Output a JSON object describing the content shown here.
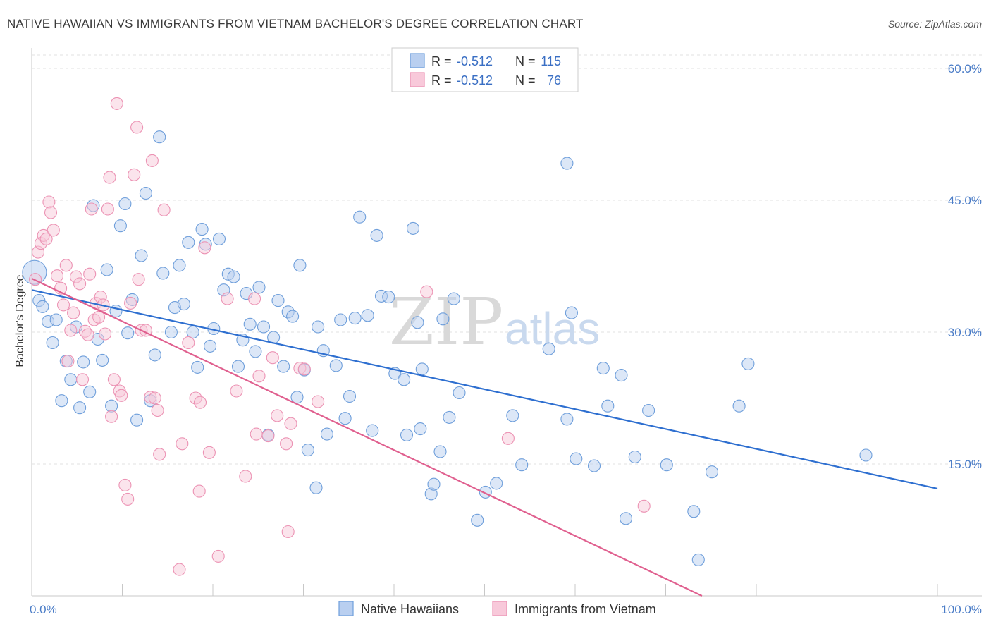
{
  "chart_data": {
    "type": "scatter",
    "title": "NATIVE HAWAIIAN VS IMMIGRANTS FROM VIETNAM BACHELOR'S DEGREE CORRELATION CHART",
    "source": "Source: ZipAtlas.com",
    "xlabel": "",
    "ylabel": "Bachelor's Degree",
    "xlim": [
      0,
      100
    ],
    "ylim": [
      0,
      60
    ],
    "x_tick_labels": [
      {
        "value": 0,
        "label": "0.0%"
      },
      {
        "value": 100,
        "label": "100.0%"
      }
    ],
    "y_tick_labels": [
      {
        "value": 15,
        "label": "15.0%"
      },
      {
        "value": 30,
        "label": "30.0%"
      },
      {
        "value": 45,
        "label": "45.0%"
      },
      {
        "value": 60,
        "label": "60.0%"
      }
    ],
    "watermark": {
      "zip": "ZIP",
      "atlas": "atlas"
    },
    "legend": {
      "r_label": "R =",
      "n_label": "N =",
      "rows": [
        {
          "r": "-0.512",
          "n": "115"
        },
        {
          "r": "-0.512",
          "n": "76"
        }
      ]
    },
    "series": [
      {
        "name": "Native Hawaiians",
        "color": "#6f9fdb",
        "fill": "#b9cff0",
        "line_color": "#2e6fd0",
        "trend": {
          "x0": 0,
          "y0": 34.8,
          "x1": 100,
          "y1": 12.2
        },
        "points": [
          [
            0.3,
            36.8
          ],
          [
            0.8,
            33.6
          ],
          [
            1.2,
            32.9
          ],
          [
            1.8,
            31.2
          ],
          [
            2.3,
            28.8
          ],
          [
            2.7,
            31.4
          ],
          [
            3.3,
            22.2
          ],
          [
            3.8,
            26.7
          ],
          [
            4.3,
            24.6
          ],
          [
            4.9,
            30.6
          ],
          [
            5.3,
            21.4
          ],
          [
            5.7,
            26.6
          ],
          [
            6.4,
            23.2
          ],
          [
            6.8,
            44.4
          ],
          [
            7.3,
            29.2
          ],
          [
            7.8,
            26.8
          ],
          [
            8.3,
            37.1
          ],
          [
            8.8,
            21.6
          ],
          [
            9.3,
            32.4
          ],
          [
            9.8,
            42.1
          ],
          [
            10.3,
            44.6
          ],
          [
            10.6,
            29.9
          ],
          [
            11.1,
            33.7
          ],
          [
            11.6,
            20.0
          ],
          [
            12.1,
            38.7
          ],
          [
            12.6,
            45.8
          ],
          [
            13.1,
            22.2
          ],
          [
            13.6,
            27.4
          ],
          [
            14.1,
            52.2
          ],
          [
            14.5,
            36.7
          ],
          [
            15.4,
            30.0
          ],
          [
            15.8,
            32.8
          ],
          [
            16.3,
            37.6
          ],
          [
            16.8,
            33.2
          ],
          [
            17.3,
            40.2
          ],
          [
            17.8,
            30.0
          ],
          [
            18.3,
            26.0
          ],
          [
            18.8,
            41.7
          ],
          [
            19.2,
            40.0
          ],
          [
            19.7,
            28.4
          ],
          [
            20.1,
            30.4
          ],
          [
            20.7,
            40.6
          ],
          [
            21.2,
            34.8
          ],
          [
            21.7,
            36.6
          ],
          [
            22.3,
            36.3
          ],
          [
            22.8,
            26.1
          ],
          [
            23.3,
            29.1
          ],
          [
            23.7,
            34.4
          ],
          [
            24.1,
            30.9
          ],
          [
            24.7,
            27.8
          ],
          [
            25.1,
            35.1
          ],
          [
            25.6,
            30.6
          ],
          [
            26.1,
            18.3
          ],
          [
            26.7,
            29.4
          ],
          [
            27.2,
            33.6
          ],
          [
            27.8,
            26.1
          ],
          [
            28.3,
            32.3
          ],
          [
            28.8,
            31.8
          ],
          [
            29.3,
            22.6
          ],
          [
            29.6,
            37.6
          ],
          [
            30.1,
            25.7
          ],
          [
            30.5,
            16.6
          ],
          [
            31.4,
            12.3
          ],
          [
            31.6,
            30.6
          ],
          [
            32.2,
            27.9
          ],
          [
            32.6,
            18.4
          ],
          [
            33.6,
            26.2
          ],
          [
            34.1,
            31.4
          ],
          [
            34.6,
            20.2
          ],
          [
            35.1,
            22.7
          ],
          [
            35.7,
            31.6
          ],
          [
            36.2,
            43.1
          ],
          [
            37.1,
            31.9
          ],
          [
            37.6,
            18.8
          ],
          [
            38.1,
            41.0
          ],
          [
            38.6,
            34.1
          ],
          [
            39.4,
            34.0
          ],
          [
            40.1,
            25.3
          ],
          [
            41.1,
            24.6
          ],
          [
            41.4,
            18.3
          ],
          [
            42.1,
            41.8
          ],
          [
            42.6,
            31.1
          ],
          [
            42.9,
            19.0
          ],
          [
            43.1,
            25.8
          ],
          [
            44.1,
            11.6
          ],
          [
            44.4,
            12.7
          ],
          [
            45.1,
            16.4
          ],
          [
            45.4,
            31.5
          ],
          [
            46.1,
            20.3
          ],
          [
            46.6,
            33.8
          ],
          [
            47.2,
            23.1
          ],
          [
            49.2,
            8.6
          ],
          [
            50.1,
            11.8
          ],
          [
            51.3,
            12.8
          ],
          [
            53.1,
            20.5
          ],
          [
            54.1,
            14.9
          ],
          [
            57.1,
            28.1
          ],
          [
            59.1,
            20.1
          ],
          [
            59.6,
            32.2
          ],
          [
            60.1,
            15.6
          ],
          [
            59.1,
            49.2
          ],
          [
            62.1,
            14.8
          ],
          [
            63.1,
            25.9
          ],
          [
            63.6,
            21.6
          ],
          [
            65.1,
            25.1
          ],
          [
            65.6,
            8.8
          ],
          [
            66.6,
            15.8
          ],
          [
            68.1,
            21.1
          ],
          [
            70.1,
            14.9
          ],
          [
            73.1,
            9.6
          ],
          [
            73.6,
            4.1
          ],
          [
            75.1,
            14.1
          ],
          [
            78.1,
            21.6
          ],
          [
            79.1,
            26.4
          ],
          [
            92.1,
            16.0
          ]
        ]
      },
      {
        "name": "Immigrants from Vietnam",
        "color": "#ec93b4",
        "fill": "#f8c9da",
        "line_color": "#e0608f",
        "trend": {
          "x0": 0,
          "y0": 36.1,
          "x1": 74,
          "y1": 0
        },
        "points": [
          [
            0.4,
            36.0
          ],
          [
            0.7,
            39.1
          ],
          [
            1.0,
            40.1
          ],
          [
            1.3,
            41.0
          ],
          [
            1.6,
            40.6
          ],
          [
            1.9,
            44.8
          ],
          [
            2.1,
            43.6
          ],
          [
            2.4,
            41.6
          ],
          [
            2.8,
            36.4
          ],
          [
            3.2,
            35.0
          ],
          [
            3.5,
            33.1
          ],
          [
            3.8,
            37.6
          ],
          [
            4.0,
            26.7
          ],
          [
            4.3,
            30.2
          ],
          [
            4.6,
            32.2
          ],
          [
            4.9,
            36.3
          ],
          [
            5.3,
            35.5
          ],
          [
            5.6,
            24.6
          ],
          [
            5.9,
            30.1
          ],
          [
            6.2,
            29.7
          ],
          [
            6.4,
            36.6
          ],
          [
            6.6,
            44.0
          ],
          [
            6.9,
            31.4
          ],
          [
            7.1,
            33.3
          ],
          [
            7.4,
            31.7
          ],
          [
            7.6,
            34.0
          ],
          [
            7.9,
            33.1
          ],
          [
            8.1,
            29.8
          ],
          [
            8.4,
            44.0
          ],
          [
            8.6,
            47.6
          ],
          [
            8.8,
            20.4
          ],
          [
            9.1,
            24.6
          ],
          [
            9.4,
            56.0
          ],
          [
            9.7,
            23.3
          ],
          [
            9.9,
            22.8
          ],
          [
            10.3,
            12.6
          ],
          [
            10.6,
            11.0
          ],
          [
            10.9,
            33.3
          ],
          [
            11.3,
            47.9
          ],
          [
            11.6,
            53.3
          ],
          [
            11.8,
            36.0
          ],
          [
            12.1,
            30.2
          ],
          [
            12.6,
            30.2
          ],
          [
            13.1,
            22.6
          ],
          [
            13.3,
            49.5
          ],
          [
            13.6,
            22.5
          ],
          [
            13.9,
            21.1
          ],
          [
            14.1,
            16.1
          ],
          [
            14.6,
            43.9
          ],
          [
            16.3,
            3.0
          ],
          [
            16.6,
            17.3
          ],
          [
            17.3,
            28.8
          ],
          [
            18.1,
            22.5
          ],
          [
            18.5,
            11.9
          ],
          [
            18.6,
            22.0
          ],
          [
            19.1,
            39.6
          ],
          [
            19.6,
            16.3
          ],
          [
            20.6,
            4.5
          ],
          [
            21.6,
            33.8
          ],
          [
            22.6,
            23.3
          ],
          [
            23.6,
            13.6
          ],
          [
            24.6,
            33.8
          ],
          [
            24.8,
            18.4
          ],
          [
            25.1,
            25.0
          ],
          [
            26.1,
            18.2
          ],
          [
            26.6,
            27.1
          ],
          [
            27.1,
            20.5
          ],
          [
            28.1,
            17.3
          ],
          [
            28.3,
            7.3
          ],
          [
            28.6,
            19.6
          ],
          [
            29.6,
            25.9
          ],
          [
            30.1,
            25.8
          ],
          [
            31.6,
            22.1
          ],
          [
            43.6,
            34.6
          ],
          [
            52.6,
            17.9
          ],
          [
            67.6,
            10.2
          ]
        ]
      }
    ]
  },
  "bottom_legend": [
    {
      "label": "Native Hawaiians"
    },
    {
      "label": "Immigrants from Vietnam"
    }
  ]
}
